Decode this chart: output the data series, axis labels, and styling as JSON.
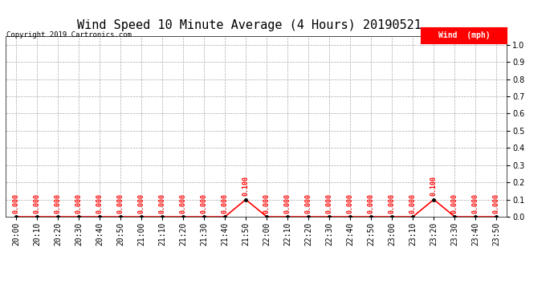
{
  "title": "Wind Speed 10 Minute Average (4 Hours) 20190521",
  "copyright_text": "Copyright 2019 Cartronics.com",
  "legend_label": "Wind  (mph)",
  "legend_bg": "#ff0000",
  "legend_text_color": "#ffffff",
  "x_labels": [
    "20:00",
    "20:10",
    "20:20",
    "20:30",
    "20:40",
    "20:50",
    "21:00",
    "21:10",
    "21:20",
    "21:30",
    "21:40",
    "21:50",
    "22:00",
    "22:10",
    "22:20",
    "22:30",
    "22:40",
    "22:50",
    "23:00",
    "23:10",
    "23:20",
    "23:30",
    "23:40",
    "23:50"
  ],
  "y_values": [
    0.0,
    0.0,
    0.0,
    0.0,
    0.0,
    0.0,
    0.0,
    0.0,
    0.0,
    0.0,
    0.0,
    0.1,
    0.0,
    0.0,
    0.0,
    0.0,
    0.0,
    0.0,
    0.0,
    0.0,
    0.1,
    0.0,
    0.0,
    0.0
  ],
  "ylim": [
    0.0,
    1.05
  ],
  "yticks": [
    0.0,
    0.1,
    0.2,
    0.3,
    0.4,
    0.5,
    0.6,
    0.7,
    0.8,
    0.9,
    1.0
  ],
  "line_color": "#ff0000",
  "marker_color": "#000000",
  "annotation_color": "#ff0000",
  "grid_color": "#aaaaaa",
  "bg_color": "#ffffff",
  "title_fontsize": 11,
  "annotation_fontsize": 6,
  "tick_fontsize": 7,
  "copyright_fontsize": 6.5
}
